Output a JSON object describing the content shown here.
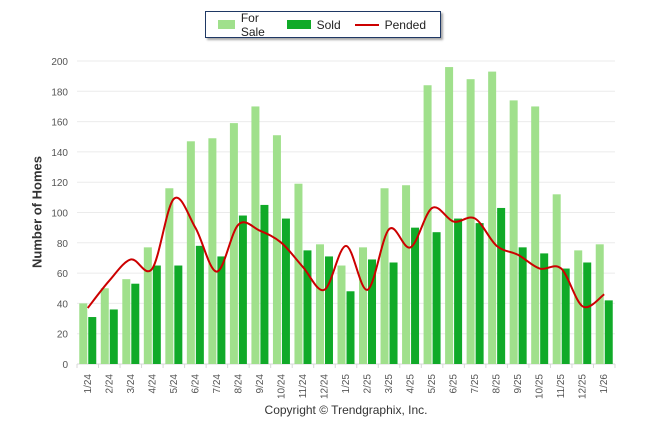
{
  "chart_data": {
    "type": "bar",
    "title": "",
    "xlabel": "",
    "ylabel": "Number of Homes",
    "ylim": [
      0,
      200
    ],
    "yticks": [
      0,
      20,
      40,
      60,
      80,
      100,
      120,
      140,
      160,
      180,
      200
    ],
    "grid": true,
    "legend_position": "top-center",
    "categories": [
      "1/24",
      "2/24",
      "3/24",
      "4/24",
      "5/24",
      "6/24",
      "7/24",
      "8/24",
      "9/24",
      "10/24",
      "11/24",
      "12/24",
      "1/25",
      "2/25",
      "3/25",
      "4/25",
      "5/25",
      "6/25",
      "7/25",
      "8/25",
      "9/25",
      "10/25",
      "11/25",
      "12/25",
      "1/26"
    ],
    "series": [
      {
        "name": "For Sale",
        "type": "bar",
        "color": "#a0e08c",
        "values": [
          40,
          50,
          56,
          77,
          116,
          147,
          149,
          159,
          170,
          151,
          119,
          79,
          65,
          77,
          116,
          118,
          184,
          196,
          188,
          193,
          174,
          170,
          112,
          75,
          79
        ]
      },
      {
        "name": "Sold",
        "type": "bar",
        "color": "#10aa28",
        "values": [
          31,
          36,
          53,
          65,
          65,
          78,
          71,
          98,
          105,
          96,
          75,
          71,
          48,
          69,
          67,
          90,
          87,
          96,
          93,
          103,
          77,
          73,
          63,
          67,
          42
        ]
      },
      {
        "name": "Pended",
        "type": "line",
        "color": "#cc0000",
        "values": [
          37,
          55,
          69,
          63,
          109,
          90,
          61,
          92,
          88,
          80,
          64,
          49,
          78,
          49,
          89,
          77,
          103,
          94,
          96,
          78,
          72,
          63,
          63,
          38,
          46
        ]
      }
    ],
    "footer": "Copyright © Trendgraphix, Inc."
  }
}
